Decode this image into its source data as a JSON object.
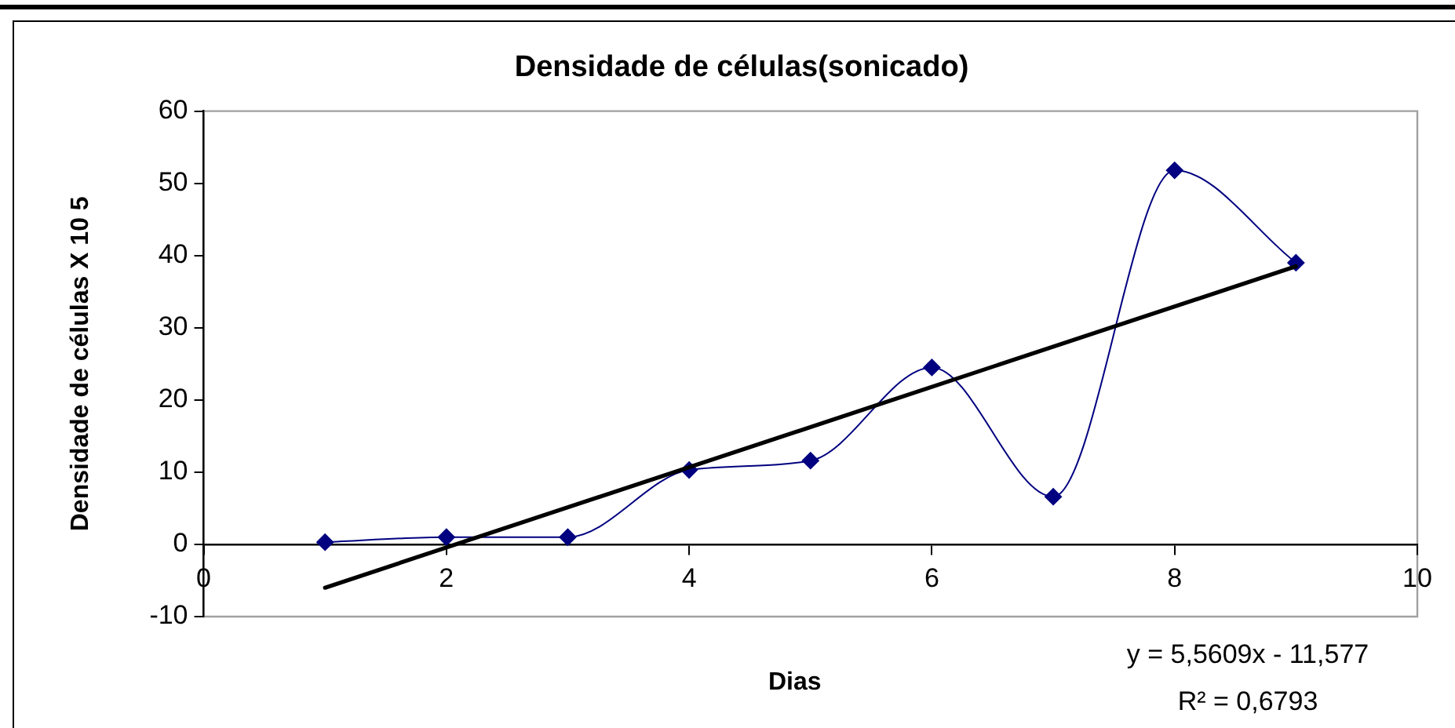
{
  "chart_data": {
    "type": "line",
    "title": "Densidade de células(sonicado)",
    "xlabel": "Dias",
    "ylabel": "Densidade de células X 10 5",
    "x": [
      1,
      2,
      3,
      4,
      5,
      6,
      7,
      8,
      9
    ],
    "series": [
      {
        "color": "#000080",
        "values": [
          0.3,
          1.0,
          1.0,
          10.3,
          11.6,
          24.5,
          6.6,
          51.8,
          39.0
        ]
      },
      {
        "type": "line",
        "x": [
          1,
          9
        ],
        "values": [
          -6.0,
          38.5
        ],
        "color": "#000000",
        "marker": "none"
      }
    ],
    "xlim": [
      0,
      10
    ],
    "xticks": [
      0,
      2,
      4,
      6,
      8,
      10
    ],
    "ylim": [
      -10,
      60
    ],
    "yticks": [
      -10,
      0,
      10,
      20,
      30,
      40,
      50,
      60
    ],
    "grid": false,
    "legend": false,
    "marker": "diamond",
    "line_style": "solid",
    "annotations": [
      "y = 5,5609x - 11,577",
      "R² = 0,6793"
    ]
  }
}
